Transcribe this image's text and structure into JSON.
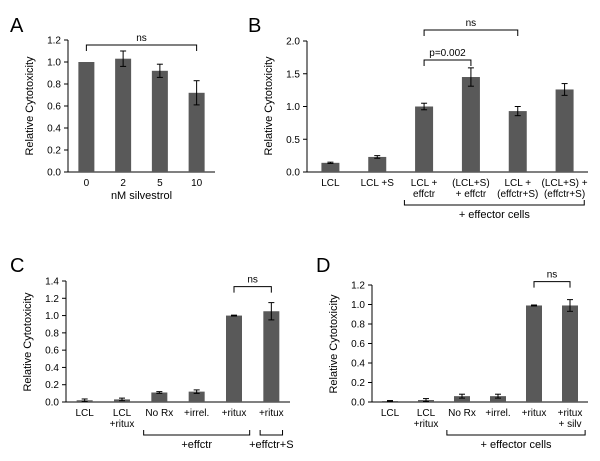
{
  "figure": {
    "bar_color": "#595959",
    "axis_color": "#000000"
  },
  "chart_data": [
    {
      "panel": "A",
      "type": "bar",
      "ylabel": "Relative Cytotoxicity",
      "xlabel": "nM silvestrol",
      "ylim": [
        0,
        1.2
      ],
      "yticks": [
        "0.0",
        "0.2",
        "0.4",
        "0.6",
        "0.8",
        "1.0",
        "1.2"
      ],
      "categories": [
        [
          "0"
        ],
        [
          "2"
        ],
        [
          "5"
        ],
        [
          "10"
        ]
      ],
      "values": [
        1.0,
        1.03,
        0.92,
        0.72
      ],
      "errors": [
        0.0,
        0.07,
        0.06,
        0.11
      ],
      "annotations": [
        {
          "from": 0,
          "to": 3,
          "text": "ns"
        }
      ],
      "groups": []
    },
    {
      "panel": "B",
      "type": "bar",
      "ylabel": "Relative Cytotoxicity",
      "xlabel": "",
      "ylim": [
        0,
        2.0
      ],
      "yticks": [
        "0.0",
        "0.5",
        "1.0",
        "1.5",
        "2.0"
      ],
      "categories": [
        [
          "LCL"
        ],
        [
          "LCL +S"
        ],
        [
          "LCL +",
          "effctr"
        ],
        [
          "(LCL+S)",
          "+ effctr"
        ],
        [
          "LCL +",
          "(effctr+S)"
        ],
        [
          "(LCL+S) +",
          "(effctr+S)"
        ]
      ],
      "values": [
        0.14,
        0.23,
        1.0,
        1.45,
        0.93,
        1.26
      ],
      "errors": [
        0.01,
        0.02,
        0.05,
        0.14,
        0.07,
        0.09
      ],
      "annotations": [
        {
          "from": 2,
          "to": 3,
          "text": "p=0.002"
        },
        {
          "from": 2,
          "to": 4,
          "text": "ns"
        }
      ],
      "groups": [
        {
          "from": 2,
          "to": 5,
          "text": "+ effector cells"
        }
      ]
    },
    {
      "panel": "C",
      "type": "bar",
      "ylabel": "Relative Cytotoxicity",
      "xlabel": "",
      "ylim": [
        0,
        1.4
      ],
      "yticks": [
        "0.0",
        "0.2",
        "0.4",
        "0.6",
        "0.8",
        "1.0",
        "1.2",
        "1.4"
      ],
      "categories": [
        [
          "LCL"
        ],
        [
          "LCL",
          "+ritux"
        ],
        [
          "No Rx"
        ],
        [
          "+irrel."
        ],
        [
          "+ritux"
        ],
        [
          "+ritux"
        ]
      ],
      "values": [
        0.02,
        0.03,
        0.11,
        0.12,
        1.0,
        1.05
      ],
      "errors": [
        0.015,
        0.015,
        0.01,
        0.02,
        0.005,
        0.1
      ],
      "annotations": [
        {
          "from": 4,
          "to": 5,
          "text": "ns"
        }
      ],
      "groups": [
        {
          "from": 2,
          "to": 4,
          "text": "+effctr"
        },
        {
          "from": 5,
          "to": 5,
          "text": "+effctr+S"
        }
      ]
    },
    {
      "panel": "D",
      "type": "bar",
      "ylabel": "Relative Cytotoxicity",
      "xlabel": "",
      "ylim": [
        0,
        1.2
      ],
      "yticks": [
        "0.0",
        "0.2",
        "0.4",
        "0.6",
        "0.8",
        "1.0",
        "1.2"
      ],
      "categories": [
        [
          "LCL"
        ],
        [
          "LCL",
          "+ritux"
        ],
        [
          "No Rx"
        ],
        [
          "+irrel."
        ],
        [
          "+ritux"
        ],
        [
          "+ritux",
          "+ silv"
        ]
      ],
      "values": [
        0.01,
        0.02,
        0.06,
        0.06,
        0.99,
        0.99
      ],
      "errors": [
        0.005,
        0.015,
        0.02,
        0.02,
        0.005,
        0.06
      ],
      "annotations": [
        {
          "from": 4,
          "to": 5,
          "text": "ns"
        }
      ],
      "groups": [
        {
          "from": 2,
          "to": 5,
          "text": "+ effector cells"
        }
      ]
    }
  ]
}
